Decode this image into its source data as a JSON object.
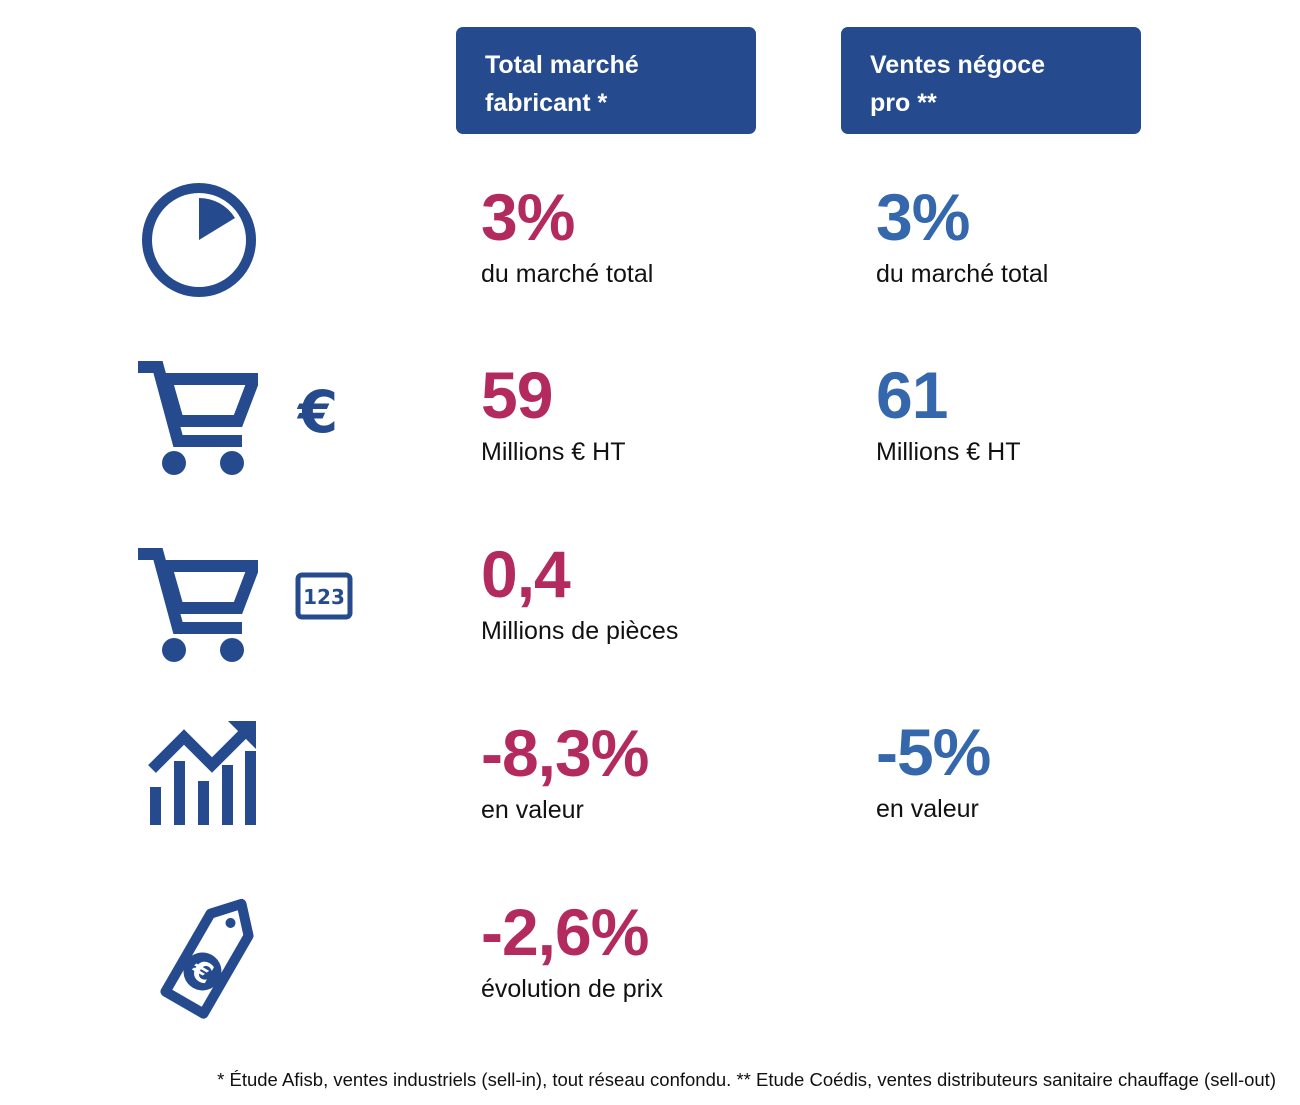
{
  "headers": {
    "col1": {
      "line1": "Total marché",
      "line2": "fabricant *"
    },
    "col2": {
      "line1": "Ventes négoce",
      "line2": "pro **"
    }
  },
  "colors": {
    "header_bg": "#254b8e",
    "col1_accent": "#b32a5f",
    "col2_accent": "#3567ad",
    "icon": "#254b8e"
  },
  "rows": [
    {
      "icon": "pie-chart-icon",
      "col1": {
        "value": "3%",
        "label": "du marché total"
      },
      "col2": {
        "value": "3%",
        "label": "du marché total"
      }
    },
    {
      "icon": "cart-euro-icon",
      "col1": {
        "value": "59",
        "label": "Millions € HT"
      },
      "col2": {
        "value": "61",
        "label": "Millions € HT"
      }
    },
    {
      "icon": "cart-quantity-icon",
      "col1": {
        "value": "0,4",
        "label": "Millions de pièces"
      }
    },
    {
      "icon": "growth-chart-icon",
      "col1": {
        "value": "-8,3%",
        "label": "en valeur"
      },
      "col2": {
        "value": "-5%",
        "label": "en valeur"
      }
    },
    {
      "icon": "price-tag-euro-icon",
      "col1": {
        "value": "-2,6%",
        "label": "évolution de prix"
      }
    }
  ],
  "icons": {
    "euro_symbol": "€",
    "counter_text": "123"
  },
  "footnote": "* Étude Afisb, ventes industriels (sell-in), tout réseau confondu. ** Etude Coédis, ventes distributeurs sanitaire chauffage (sell-out)"
}
